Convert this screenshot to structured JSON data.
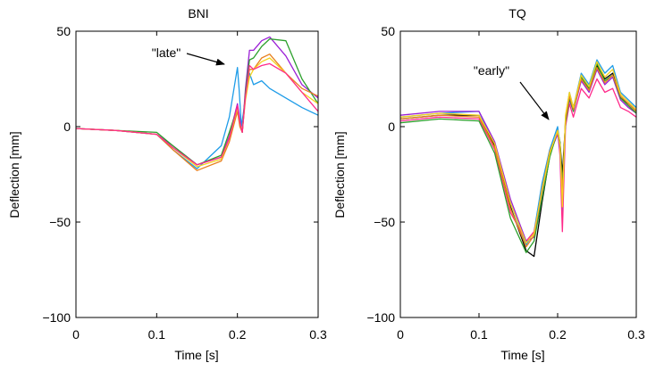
{
  "chart_data": [
    {
      "type": "line",
      "title": "BNI",
      "xlabel": "Time [s]",
      "ylabel": "Deflection [mm]",
      "xlim": [
        0,
        0.3
      ],
      "ylim": [
        -100,
        50
      ],
      "xticks": [
        0,
        0.1,
        0.2,
        0.3
      ],
      "xtick_labels": [
        "0",
        "0.1",
        "0.2",
        "0.3"
      ],
      "yticks": [
        -100,
        -50,
        0,
        50
      ],
      "ytick_labels": [
        "−100",
        "−50",
        "0",
        "50"
      ],
      "grid": false,
      "annotation": {
        "text": "\"late\"",
        "arrow_to": [
          0.2,
          31
        ]
      },
      "series": [
        {
          "color": "#1e9ce8",
          "x": [
            0,
            0.05,
            0.1,
            0.12,
            0.15,
            0.18,
            0.19,
            0.2,
            0.202,
            0.205,
            0.21,
            0.215,
            0.22,
            0.23,
            0.24,
            0.26,
            0.28,
            0.3
          ],
          "y": [
            -1,
            -2,
            -4,
            -12,
            -22,
            -10,
            5,
            31,
            20,
            0,
            15,
            28,
            22,
            24,
            20,
            15,
            10,
            6
          ]
        },
        {
          "color": "#9b1fd6",
          "x": [
            0,
            0.05,
            0.1,
            0.12,
            0.15,
            0.18,
            0.19,
            0.2,
            0.203,
            0.206,
            0.21,
            0.215,
            0.22,
            0.23,
            0.24,
            0.26,
            0.28,
            0.3
          ],
          "y": [
            -1,
            -2,
            -4,
            -10,
            -20,
            -16,
            -5,
            12,
            4,
            -3,
            20,
            40,
            40,
            45,
            47,
            37,
            22,
            15
          ]
        },
        {
          "color": "#2ca02c",
          "x": [
            0,
            0.05,
            0.1,
            0.12,
            0.15,
            0.18,
            0.19,
            0.2,
            0.203,
            0.206,
            0.21,
            0.215,
            0.22,
            0.23,
            0.24,
            0.26,
            0.28,
            0.3
          ],
          "y": [
            -1,
            -2,
            -3,
            -10,
            -20,
            -15,
            -3,
            10,
            2,
            -3,
            18,
            35,
            36,
            42,
            46,
            45,
            25,
            12
          ]
        },
        {
          "color": "#e8801e",
          "x": [
            0,
            0.05,
            0.1,
            0.12,
            0.15,
            0.18,
            0.19,
            0.2,
            0.203,
            0.206,
            0.21,
            0.215,
            0.22,
            0.23,
            0.24,
            0.26,
            0.28,
            0.3
          ],
          "y": [
            -1,
            -2,
            -4,
            -12,
            -23,
            -18,
            -8,
            8,
            0,
            -3,
            16,
            30,
            30,
            36,
            38,
            28,
            20,
            16
          ]
        },
        {
          "color": "#f5d21e",
          "x": [
            0,
            0.05,
            0.1,
            0.12,
            0.15,
            0.18,
            0.19,
            0.2,
            0.203,
            0.206,
            0.21,
            0.215,
            0.22,
            0.23,
            0.24,
            0.26,
            0.28,
            0.3
          ],
          "y": [
            -1,
            -2,
            -4,
            -11,
            -21,
            -17,
            -6,
            10,
            2,
            -2,
            14,
            26,
            30,
            34,
            36,
            28,
            18,
            12
          ]
        },
        {
          "color": "#ff2a8a",
          "x": [
            0,
            0.05,
            0.1,
            0.12,
            0.15,
            0.18,
            0.19,
            0.2,
            0.203,
            0.206,
            0.21,
            0.215,
            0.22,
            0.23,
            0.24,
            0.26,
            0.28,
            0.3
          ],
          "y": [
            -1,
            -2,
            -4,
            -11,
            -20,
            -16,
            -6,
            11,
            2,
            -3,
            16,
            32,
            30,
            32,
            33,
            28,
            18,
            8
          ]
        }
      ]
    },
    {
      "type": "line",
      "title": "TQ",
      "xlabel": "Time [s]",
      "ylabel": "Deflection [mm]",
      "xlim": [
        0,
        0.3
      ],
      "ylim": [
        -100,
        50
      ],
      "xticks": [
        0,
        0.1,
        0.2,
        0.3
      ],
      "xtick_labels": [
        "0",
        "0.1",
        "0.2",
        "0.3"
      ],
      "yticks": [
        -100,
        -50,
        0,
        50
      ],
      "ytick_labels": [
        "−100",
        "−50",
        "0",
        "50"
      ],
      "grid": false,
      "annotation": {
        "text": "\"early\"",
        "arrow_to": [
          0.2,
          2
        ]
      },
      "series": [
        {
          "color": "#1e9ce8",
          "x": [
            0,
            0.05,
            0.1,
            0.12,
            0.14,
            0.16,
            0.17,
            0.18,
            0.19,
            0.2,
            0.203,
            0.206,
            0.21,
            0.215,
            0.22,
            0.23,
            0.24,
            0.25,
            0.26,
            0.27,
            0.28,
            0.29,
            0.3
          ],
          "y": [
            5,
            7,
            8,
            -10,
            -40,
            -62,
            -55,
            -30,
            -12,
            0,
            -10,
            -45,
            5,
            18,
            10,
            28,
            22,
            35,
            28,
            32,
            18,
            14,
            10
          ]
        },
        {
          "color": "#000000",
          "x": [
            0,
            0.05,
            0.1,
            0.12,
            0.14,
            0.16,
            0.17,
            0.18,
            0.19,
            0.2,
            0.203,
            0.206,
            0.21,
            0.215,
            0.22,
            0.23,
            0.24,
            0.25,
            0.26,
            0.27,
            0.28,
            0.29,
            0.3
          ],
          "y": [
            4,
            6,
            6,
            -10,
            -42,
            -65,
            -68,
            -40,
            -15,
            -3,
            -8,
            -25,
            2,
            15,
            10,
            25,
            20,
            32,
            25,
            28,
            15,
            12,
            8
          ]
        },
        {
          "color": "#ff2a8a",
          "x": [
            0,
            0.05,
            0.1,
            0.12,
            0.14,
            0.16,
            0.17,
            0.18,
            0.19,
            0.2,
            0.203,
            0.206,
            0.21,
            0.215,
            0.22,
            0.23,
            0.24,
            0.25,
            0.26,
            0.27,
            0.28,
            0.29,
            0.3
          ],
          "y": [
            3,
            5,
            4,
            -12,
            -45,
            -60,
            -55,
            -35,
            -15,
            -2,
            -15,
            -55,
            0,
            12,
            5,
            20,
            15,
            25,
            18,
            20,
            10,
            8,
            5
          ]
        },
        {
          "color": "#9b1fd6",
          "x": [
            0,
            0.05,
            0.1,
            0.12,
            0.14,
            0.16,
            0.17,
            0.18,
            0.19,
            0.2,
            0.203,
            0.206,
            0.21,
            0.215,
            0.22,
            0.23,
            0.24,
            0.25,
            0.26,
            0.27,
            0.28,
            0.29,
            0.3
          ],
          "y": [
            6,
            8,
            8,
            -8,
            -38,
            -60,
            -58,
            -35,
            -14,
            -4,
            -12,
            -40,
            3,
            14,
            8,
            24,
            18,
            30,
            22,
            26,
            14,
            10,
            7
          ]
        },
        {
          "color": "#2ca02c",
          "x": [
            0,
            0.05,
            0.1,
            0.12,
            0.14,
            0.16,
            0.17,
            0.18,
            0.19,
            0.2,
            0.203,
            0.206,
            0.21,
            0.215,
            0.22,
            0.23,
            0.24,
            0.25,
            0.26,
            0.27,
            0.28,
            0.29,
            0.3
          ],
          "y": [
            2,
            4,
            3,
            -14,
            -48,
            -66,
            -60,
            -38,
            -16,
            -2,
            -8,
            -30,
            2,
            15,
            8,
            26,
            20,
            33,
            24,
            27,
            15,
            11,
            7
          ]
        },
        {
          "color": "#e8801e",
          "x": [
            0,
            0.05,
            0.1,
            0.12,
            0.14,
            0.16,
            0.17,
            0.18,
            0.19,
            0.2,
            0.203,
            0.206,
            0.21,
            0.215,
            0.22,
            0.23,
            0.24,
            0.25,
            0.26,
            0.27,
            0.28,
            0.29,
            0.3
          ],
          "y": [
            4,
            6,
            5,
            -11,
            -43,
            -63,
            -57,
            -33,
            -13,
            -3,
            -10,
            -35,
            4,
            16,
            9,
            25,
            19,
            31,
            23,
            27,
            16,
            12,
            8
          ]
        },
        {
          "color": "#f5d21e",
          "x": [
            0,
            0.05,
            0.1,
            0.12,
            0.14,
            0.16,
            0.17,
            0.18,
            0.19,
            0.2,
            0.203,
            0.206,
            0.21,
            0.215,
            0.22,
            0.23,
            0.24,
            0.25,
            0.26,
            0.27,
            0.28,
            0.29,
            0.3
          ],
          "y": [
            5,
            7,
            6,
            -9,
            -40,
            -61,
            -56,
            -34,
            -14,
            -2,
            -9,
            -42,
            6,
            18,
            10,
            27,
            21,
            34,
            26,
            30,
            17,
            13,
            9
          ]
        }
      ]
    }
  ]
}
